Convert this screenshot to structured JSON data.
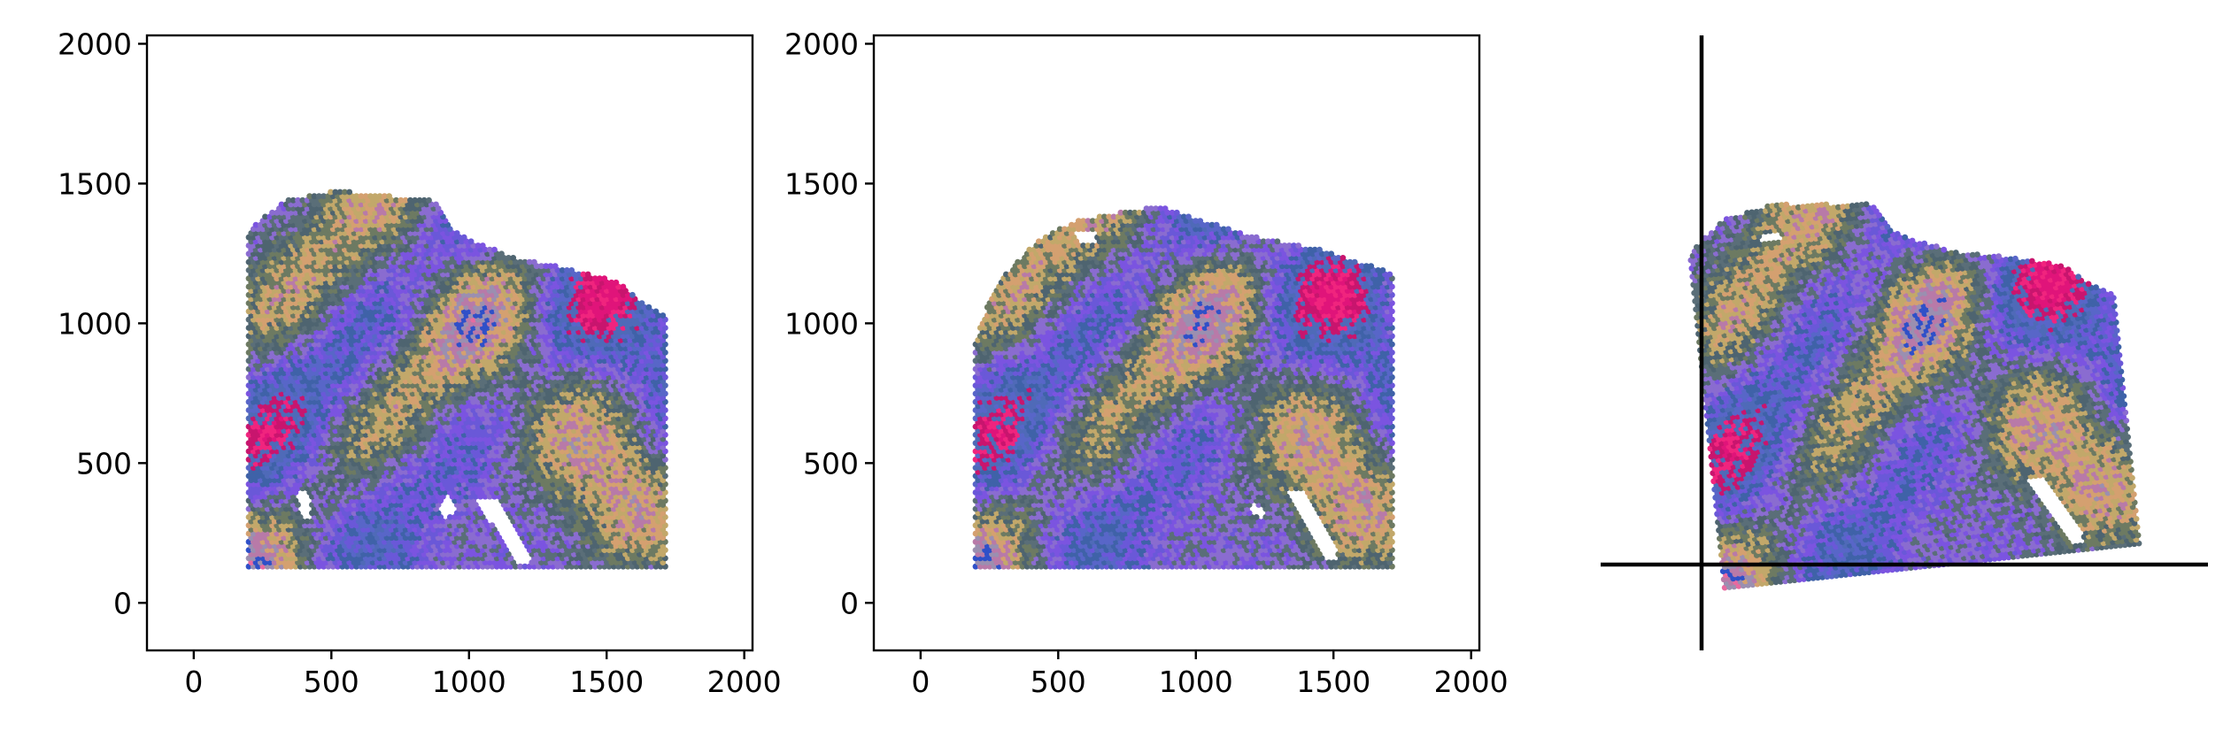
{
  "chart_data": [
    {
      "type": "scatter",
      "panel": "original",
      "description_note": "",
      "xlim": [
        -170,
        2030
      ],
      "ylim": [
        -170,
        2030
      ],
      "xticks": [
        0,
        500,
        1000,
        1500,
        2000
      ],
      "yticks": [
        0,
        500,
        1000,
        1500,
        2000
      ],
      "grid": false,
      "show_axes": true,
      "x_range": [
        200,
        1715
      ],
      "y_range": [
        130,
        1475
      ],
      "top_boundary": [
        [
          200,
          1335
        ],
        [
          330,
          1440
        ],
        [
          520,
          1475
        ],
        [
          870,
          1440
        ],
        [
          960,
          1320
        ],
        [
          1150,
          1240
        ],
        [
          1360,
          1195
        ],
        [
          1540,
          1150
        ],
        [
          1650,
          1060
        ],
        [
          1715,
          1030
        ]
      ],
      "holes": [
        [
          [
            370,
            400
          ],
          [
            420,
            400
          ],
          [
            430,
            300
          ],
          [
            390,
            300
          ]
        ],
        [
          [
            880,
            330
          ],
          [
            930,
            390
          ],
          [
            960,
            330
          ],
          [
            910,
            300
          ]
        ],
        [
          [
            1020,
            380
          ],
          [
            1110,
            380
          ],
          [
            1230,
            140
          ],
          [
            1170,
            140
          ]
        ]
      ]
    },
    {
      "type": "scatter",
      "panel": "transformed",
      "xlim": [
        -170,
        2030
      ],
      "ylim": [
        -170,
        2030
      ],
      "xticks": [
        0,
        500,
        1000,
        1500,
        2000
      ],
      "yticks": [
        0,
        500,
        1000,
        1500,
        2000
      ],
      "grid": false,
      "show_axes": true,
      "x_range": [
        200,
        1715
      ],
      "y_range": [
        130,
        1420
      ],
      "top_boundary": [
        [
          200,
          930
        ],
        [
          250,
          1090
        ],
        [
          320,
          1190
        ],
        [
          430,
          1300
        ],
        [
          570,
          1370
        ],
        [
          860,
          1420
        ],
        [
          1210,
          1310
        ],
        [
          1430,
          1270
        ],
        [
          1715,
          1180
        ]
      ],
      "holes": [
        [
          [
            1330,
            400
          ],
          [
            1400,
            400
          ],
          [
            1530,
            150
          ],
          [
            1480,
            150
          ]
        ],
        [
          [
            1210,
            360
          ],
          [
            1250,
            330
          ],
          [
            1240,
            300
          ],
          [
            1200,
            330
          ]
        ],
        [
          [
            560,
            1330
          ],
          [
            640,
            1330
          ],
          [
            640,
            1290
          ],
          [
            570,
            1290
          ]
        ]
      ]
    },
    {
      "type": "scatter",
      "panel": "registered-rotated",
      "grid": false,
      "show_axes": false,
      "crosshair": true,
      "rotation_deg": 6,
      "x_range": [
        200,
        1715
      ],
      "y_range": [
        130,
        1475
      ],
      "top_boundary": [
        [
          200,
          1335
        ],
        [
          330,
          1440
        ],
        [
          520,
          1475
        ],
        [
          870,
          1440
        ],
        [
          960,
          1320
        ],
        [
          1150,
          1240
        ],
        [
          1360,
          1195
        ],
        [
          1540,
          1150
        ],
        [
          1650,
          1060
        ],
        [
          1715,
          1030
        ]
      ],
      "holes": [
        [
          [
            1330,
            400
          ],
          [
            1400,
            400
          ],
          [
            1530,
            150
          ],
          [
            1480,
            150
          ]
        ],
        [
          [
            460,
            1380
          ],
          [
            540,
            1380
          ],
          [
            540,
            1340
          ],
          [
            460,
            1340
          ]
        ]
      ]
    }
  ],
  "colors": {
    "palette": [
      "#e0147a",
      "#f0247e",
      "#c8156e",
      "#4f6ab8",
      "#5866c8",
      "#3f62a8",
      "#6a58d8",
      "#7b54e0",
      "#8a6cd0",
      "#5a6e78",
      "#4e6470",
      "#6d7a62",
      "#c2a86a",
      "#d4a070",
      "#b87aa8",
      "#9b8fb0",
      "#2f50c8",
      "#e86aa0"
    ],
    "axis": "#000000",
    "background": "#ffffff"
  }
}
